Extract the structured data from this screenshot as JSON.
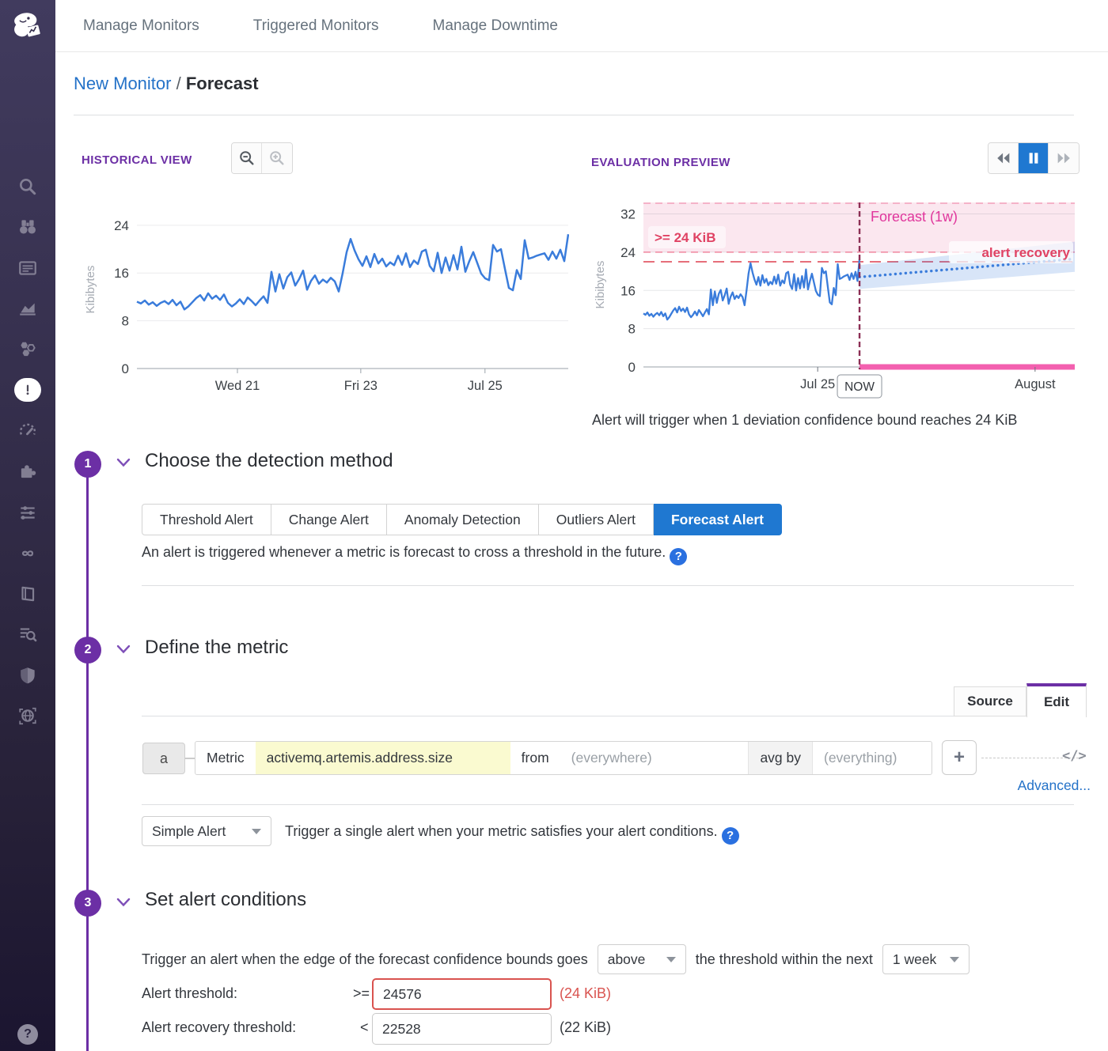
{
  "colors": {
    "accent_purple": "#6c2fa5",
    "active_blue": "#1f78d1",
    "link_blue": "#2472c8",
    "chart_line": "#3a7cdb",
    "forecast_pink_bar": "#f360af",
    "alert_red": "#d9534f",
    "forecast_magenta": "#e0369c"
  },
  "sidebar": {
    "logo": "datadog-logo",
    "icons": [
      "search",
      "watchdog",
      "dashboards",
      "metrics",
      "infrastructure",
      "monitors",
      "apm",
      "integrations",
      "log-pipelines",
      "ci",
      "notebooks",
      "log-explorer",
      "security",
      "synthetics"
    ],
    "active_icon": "monitors",
    "help": "?"
  },
  "nav": {
    "items": [
      "Manage Monitors",
      "Triggered Monitors",
      "Manage Downtime"
    ]
  },
  "breadcrumb": {
    "link": "New Monitor",
    "separator": "/",
    "current": "Forecast"
  },
  "historical": {
    "title": "HISTORICAL VIEW",
    "zoom_out": "zoom-out",
    "zoom_in": "zoom-in"
  },
  "evaluation": {
    "title": "EVALUATION PREVIEW",
    "caption": "Alert will trigger when 1 deviation confidence bound reaches 24 KiB",
    "controls": [
      "rewind",
      "pause",
      "fast-forward"
    ]
  },
  "chart_data": [
    {
      "type": "line",
      "title": "HISTORICAL VIEW",
      "xlabel": "",
      "ylabel": "Kibibytes",
      "ylim": [
        0,
        26.5
      ],
      "yticks": [
        0,
        8,
        16,
        24
      ],
      "xticks": [
        {
          "label": "Wed 21",
          "pos": 0.233
        },
        {
          "label": "Fri 23",
          "pos": 0.519
        },
        {
          "label": "Jul 25",
          "pos": 0.807
        }
      ],
      "grid": true,
      "series": [
        {
          "name": "activemq.artemis.address.size",
          "color": "#3a7cdb",
          "values": [
            11.2,
            10.9,
            11.4,
            10.7,
            11.1,
            10.5,
            11.0,
            11.3,
            10.8,
            11.5,
            10.6,
            11.2,
            9.9,
            10.4,
            11.1,
            11.8,
            12.3,
            11.4,
            12.6,
            11.7,
            12.2,
            11.5,
            12.4,
            11.0,
            10.4,
            10.9,
            11.6,
            10.8,
            11.9,
            11.3,
            10.6,
            11.4,
            12.1,
            11.0,
            16.2,
            12.9,
            15.8,
            13.4,
            15.3,
            16.1,
            13.9,
            15.0,
            16.4,
            13.2,
            14.7,
            15.6,
            14.2,
            14.9,
            14.4,
            15.2,
            14.6,
            12.9,
            16.0,
            19.5,
            21.7,
            19.8,
            18.3,
            17.2,
            18.8,
            17.0,
            19.2,
            17.6,
            18.4,
            17.1,
            17.8,
            17.3,
            18.9,
            17.4,
            19.3,
            17.0,
            18.1,
            17.5,
            19.6,
            19.9,
            17.2,
            16.3,
            19.4,
            16.0,
            18.6,
            16.4,
            19.0,
            16.6,
            20.4,
            16.2,
            18.0,
            19.5,
            17.7,
            15.9,
            15.1,
            14.8,
            20.7,
            19.6,
            20.0,
            16.7,
            13.5,
            13.1,
            16.5,
            15.0,
            21.5,
            18.4,
            18.6,
            18.9,
            19.1,
            19.3,
            18.2,
            19.6,
            18.4,
            19.9,
            18.0,
            22.5
          ]
        }
      ]
    },
    {
      "type": "line",
      "title": "EVALUATION PREVIEW",
      "xlabel": "",
      "ylabel": "Kibibytes",
      "ylim": [
        0,
        34.4
      ],
      "yticks": [
        0,
        8,
        16,
        24,
        32
      ],
      "xticks": [
        {
          "label": "Jul 25",
          "pos": 0.404
        },
        {
          "label": "August",
          "pos": 0.908
        }
      ],
      "grid": true,
      "now_pos": 0.501,
      "now_label": "NOW",
      "threshold": 24,
      "threshold_zone_label": ">= 24 KiB",
      "recovery_threshold": 22,
      "recovery_label": "alert recovery",
      "forecast_label": "Forecast (1w)",
      "history_series": {
        "name": "activemq.artemis.address.size",
        "color": "#3a7cdb",
        "values": [
          11.2,
          10.9,
          11.4,
          10.7,
          11.1,
          10.5,
          11.0,
          11.3,
          10.8,
          11.5,
          10.6,
          11.2,
          9.9,
          10.4,
          11.1,
          11.8,
          12.3,
          11.4,
          12.6,
          11.7,
          12.2,
          11.5,
          12.4,
          11.0,
          10.4,
          10.9,
          11.6,
          10.8,
          11.9,
          11.3,
          10.6,
          11.4,
          12.1,
          11.0,
          16.2,
          12.9,
          15.8,
          13.4,
          15.3,
          16.1,
          13.9,
          15.0,
          16.4,
          13.2,
          14.7,
          15.6,
          14.2,
          14.9,
          14.4,
          15.2,
          14.6,
          12.9,
          16.0,
          19.5,
          21.7,
          19.8,
          18.3,
          17.2,
          18.8,
          17.0,
          19.2,
          17.6,
          18.4,
          17.1,
          17.8,
          17.3,
          18.9,
          17.4,
          19.3,
          17.0,
          18.1,
          17.5,
          19.6,
          19.9,
          17.2,
          16.3,
          19.4,
          16.0,
          18.6,
          16.4,
          19.0,
          16.6,
          20.4,
          16.2,
          18.0,
          19.5,
          17.7,
          15.9,
          15.1,
          14.8,
          20.7,
          19.6,
          20.0,
          16.7,
          13.5,
          13.1,
          16.5,
          15.0,
          21.5,
          18.4,
          18.6,
          18.9,
          19.1,
          19.3,
          18.2,
          19.6,
          18.4,
          19.9,
          18.0,
          22.5
        ]
      },
      "forecast": {
        "x": [
          0.501,
          1.0
        ],
        "median": [
          18.8,
          22.6
        ],
        "upper": [
          21.3,
          26.2
        ],
        "lower": [
          16.3,
          19.9
        ]
      }
    }
  ],
  "sections": {
    "one": {
      "number": "1",
      "title": "Choose the detection method",
      "tabs": [
        "Threshold Alert",
        "Change Alert",
        "Anomaly Detection",
        "Outliers Alert",
        "Forecast Alert"
      ],
      "active_tab": "Forecast Alert",
      "description": "An alert is triggered whenever a metric is forecast to cross a threshold in the future."
    },
    "two": {
      "number": "2",
      "title": "Define the metric",
      "source_tab": "Source",
      "edit_tab": "Edit",
      "query": {
        "letter": "a",
        "metric_label": "Metric",
        "metric_value": "activemq.artemis.address.size",
        "from_label": "from",
        "from_placeholder": "(everywhere)",
        "agg_label": "avg by",
        "agg_placeholder": "(everything)",
        "add_label": "+",
        "code_icon": "</>"
      },
      "advanced_link": "Advanced...",
      "alert_type": "Simple Alert",
      "alert_type_description": "Trigger a single alert when your metric satisfies your alert conditions."
    },
    "three": {
      "number": "3",
      "title": "Set alert conditions",
      "condition_prefix": "Trigger an alert when the edge of the forecast confidence bounds goes",
      "operator": "above",
      "condition_middle": "the threshold within the next",
      "window": "1 week",
      "threshold_row": {
        "label": "Alert threshold:",
        "op": ">=",
        "value": "24576",
        "hint": "(24 KiB)"
      },
      "recovery_row": {
        "label": "Alert recovery threshold:",
        "op": "<",
        "value": "22528",
        "hint": "(22 KiB)"
      }
    }
  }
}
